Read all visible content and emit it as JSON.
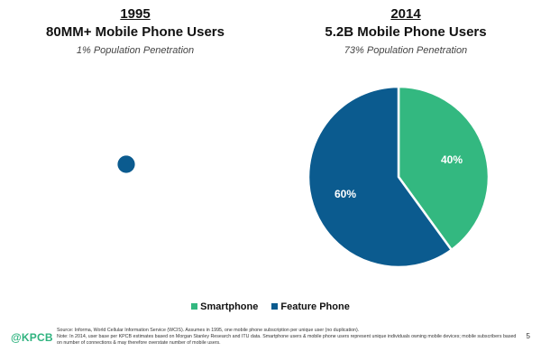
{
  "left_panel": {
    "year": "1995",
    "headline": "80MM+ Mobile Phone Users",
    "subline": "1% Population Penetration"
  },
  "right_panel": {
    "year": "2014",
    "headline": "5.2B Mobile Phone Users",
    "subline": "73% Population Penetration"
  },
  "chart_data": [
    {
      "type": "pie",
      "title": "1995",
      "slices": [
        {
          "label": "Feature Phone",
          "value": 100,
          "color": "#0b5b8f"
        }
      ],
      "data_labels_shown": false,
      "relative_size": 0.08
    },
    {
      "type": "pie",
      "title": "2014",
      "slices": [
        {
          "label": "Smartphone",
          "value": 40,
          "display": "40%",
          "color": "#33b880"
        },
        {
          "label": "Feature Phone",
          "value": 60,
          "display": "60%",
          "color": "#0b5b8f"
        }
      ],
      "data_labels_shown": true,
      "relative_size": 1
    }
  ],
  "legend": {
    "position": "bottom-center",
    "items": [
      {
        "label": "Smartphone",
        "color": "#33b880"
      },
      {
        "label": "Feature Phone",
        "color": "#0b5b8f"
      }
    ]
  },
  "footer": {
    "logo": "@KPCB",
    "source_line_1": "Source: Informa, World Cellular Information Service (WCIS). Assumes in 1995, one mobile phone subscription per unique user (no duplication).",
    "source_line_2": "Note: In 2014, user base per KPCB estimates based on Morgan Stanley Research and ITU data. Smartphone users & mobile phone users represent unique individuals owning mobile devices; mobile subscribers based on number of connections & may therefore overstate number of mobile users.",
    "page_number": "5"
  }
}
